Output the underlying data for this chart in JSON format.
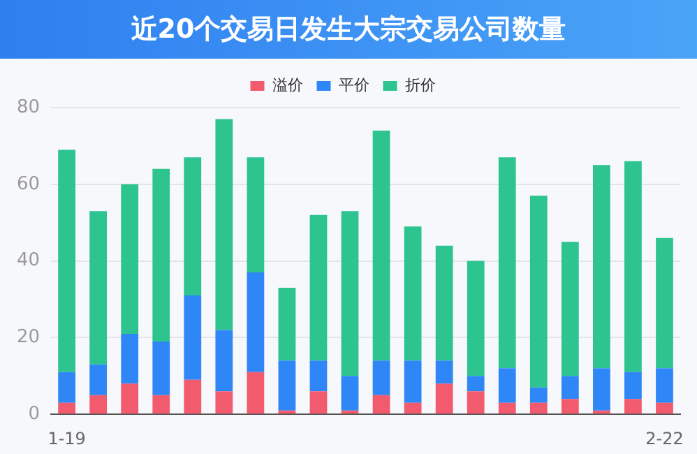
{
  "chart_data": {
    "type": "bar",
    "title": "近20个交易日发生大宗交易公司数量",
    "categories": [
      "1-19",
      null,
      null,
      null,
      null,
      null,
      null,
      null,
      null,
      null,
      null,
      null,
      null,
      null,
      null,
      null,
      null,
      null,
      null,
      "2-22"
    ],
    "stacked": true,
    "series": [
      {
        "name": "溢价",
        "color": "#f25a6e",
        "values": [
          3,
          5,
          8,
          5,
          9,
          6,
          11,
          1,
          6,
          1,
          5,
          3,
          8,
          6,
          3,
          3,
          4,
          1,
          4,
          3
        ]
      },
      {
        "name": "平价",
        "color": "#2f86f6",
        "values": [
          8,
          8,
          13,
          14,
          22,
          16,
          26,
          13,
          8,
          9,
          9,
          11,
          6,
          4,
          9,
          4,
          6,
          11,
          7,
          9
        ]
      },
      {
        "name": "折价",
        "color": "#2ec48f",
        "values": [
          58,
          40,
          39,
          45,
          36,
          55,
          30,
          19,
          38,
          43,
          60,
          35,
          30,
          30,
          55,
          50,
          35,
          53,
          55,
          34
        ]
      }
    ],
    "ylim": [
      0,
      80
    ],
    "yticks": [
      0,
      20,
      40,
      60,
      80
    ],
    "grid": "y",
    "legend": "top"
  }
}
